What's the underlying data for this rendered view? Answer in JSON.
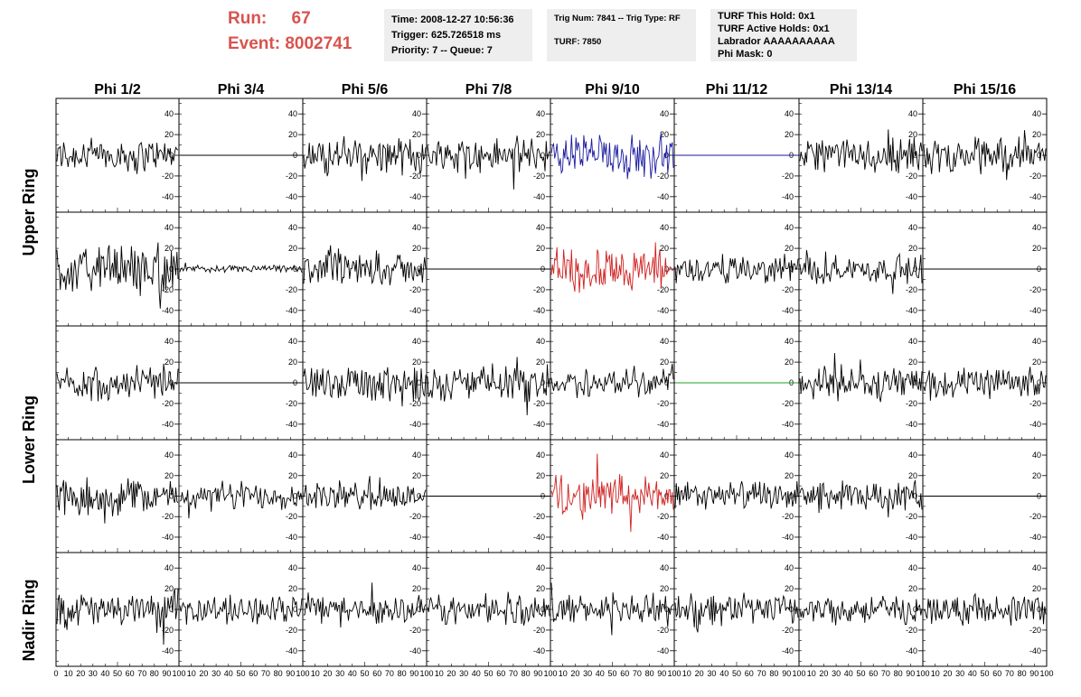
{
  "header": {
    "run_label": "Run:",
    "run_value": "67",
    "event_label": "Event:",
    "event_value": "8002741",
    "box1": [
      "Time: 2008-12-27 10:56:36",
      "Trigger: 625.726518 ms",
      "Priority: 7 -- Queue: 7"
    ],
    "box2": [
      "Trig Num: 7841 -- Trig Type: RF",
      "TURF: 7850"
    ],
    "box3": [
      "TURF This Hold: 0x1",
      "TURF Active Holds: 0x1",
      "Labrador AAAAAAAAAA",
      "Phi Mask: 0"
    ]
  },
  "colors": {
    "run_text": "#d9534f",
    "trace_default": "#000000",
    "trace_blue": "#1a1aa0",
    "trace_red": "#d02020",
    "trace_green": "#20a020",
    "box_bg": "#eeeeee"
  },
  "chart_data": {
    "type": "line",
    "phi_titles": [
      "Phi 1/2",
      "Phi 3/4",
      "Phi 5/6",
      "Phi 7/8",
      "Phi 9/10",
      "Phi 11/12",
      "Phi 13/14",
      "Phi 15/16"
    ],
    "ring_titles": [
      "Upper Ring",
      "Lower Ring",
      "Nadir Ring"
    ],
    "xlim": [
      0,
      100
    ],
    "ylim": [
      -55,
      55
    ],
    "yticks": [
      "40",
      "20",
      "0",
      "-20",
      "-40"
    ],
    "xtick_labels": [
      "0 10 20 30 40 50 60 70 80 90 100",
      "10 20 30 40 50 60 70 80 90 100",
      "10 20 30 40 50 60 70 80 90 100",
      "10 20 30 40 50 60 70 80 90 100",
      "10 20 30 40 50 60 70 80 90 100",
      "10 20 30 40 50 60 70 80 90 100",
      "10 20 30 40 50 60 70 80 90 100",
      "10 20 30 40 50 60 70 80 90 100"
    ],
    "rows": [
      {
        "cells": [
          {
            "style": "noise",
            "amp": 14,
            "color": "default"
          },
          {
            "style": "flat",
            "amp": 0,
            "color": "default"
          },
          {
            "style": "noise",
            "amp": 15,
            "color": "default"
          },
          {
            "style": "noise",
            "amp": 15,
            "color": "default"
          },
          {
            "style": "noise",
            "amp": 18,
            "color": "blue"
          },
          {
            "style": "flat",
            "amp": 0,
            "color": "blue"
          },
          {
            "style": "noise",
            "amp": 15,
            "color": "default"
          },
          {
            "style": "noise",
            "amp": 15,
            "color": "default"
          }
        ]
      },
      {
        "cells": [
          {
            "style": "noise",
            "amp": 20,
            "color": "default"
          },
          {
            "style": "small",
            "amp": 3,
            "color": "default"
          },
          {
            "style": "noise",
            "amp": 13,
            "color": "default"
          },
          {
            "style": "flat",
            "amp": 0,
            "color": "default"
          },
          {
            "style": "noise",
            "amp": 20,
            "color": "red"
          },
          {
            "style": "noise",
            "amp": 12,
            "color": "default"
          },
          {
            "style": "noise",
            "amp": 12,
            "color": "default"
          },
          {
            "style": "flat",
            "amp": 0,
            "color": "default"
          }
        ]
      },
      {
        "cells": [
          {
            "style": "noise",
            "amp": 14,
            "color": "default"
          },
          {
            "style": "flat",
            "amp": 0,
            "color": "default"
          },
          {
            "style": "noise",
            "amp": 17,
            "color": "default"
          },
          {
            "style": "noise",
            "amp": 15,
            "color": "default"
          },
          {
            "style": "noise",
            "amp": 12,
            "color": "default"
          },
          {
            "style": "flat",
            "amp": 0,
            "color": "green"
          },
          {
            "style": "noise",
            "amp": 15,
            "color": "default"
          },
          {
            "style": "noise",
            "amp": 13,
            "color": "default"
          }
        ]
      },
      {
        "cells": [
          {
            "style": "noise",
            "amp": 15,
            "color": "default"
          },
          {
            "style": "noise",
            "amp": 12,
            "color": "default"
          },
          {
            "style": "noise",
            "amp": 12,
            "color": "default"
          },
          {
            "style": "flat",
            "amp": 0,
            "color": "default"
          },
          {
            "style": "noise",
            "amp": 18,
            "color": "red"
          },
          {
            "style": "noise",
            "amp": 12,
            "color": "default"
          },
          {
            "style": "noise",
            "amp": 12,
            "color": "default"
          },
          {
            "style": "flat",
            "amp": 0,
            "color": "default"
          }
        ]
      },
      {
        "cells": [
          {
            "style": "noise",
            "amp": 15,
            "color": "default"
          },
          {
            "style": "noise",
            "amp": 12,
            "color": "default"
          },
          {
            "style": "noise",
            "amp": 13,
            "color": "default"
          },
          {
            "style": "noise",
            "amp": 12,
            "color": "default"
          },
          {
            "style": "noise",
            "amp": 13,
            "color": "default"
          },
          {
            "style": "noise",
            "amp": 15,
            "color": "default"
          },
          {
            "style": "noise",
            "amp": 12,
            "color": "default"
          },
          {
            "style": "noise",
            "amp": 13,
            "color": "default"
          }
        ]
      }
    ]
  }
}
